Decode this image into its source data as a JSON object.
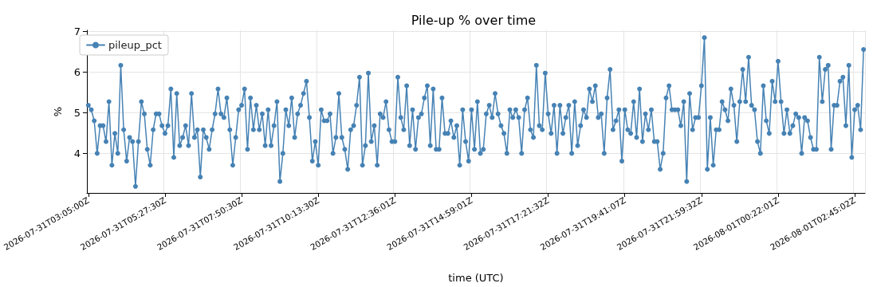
{
  "chart_data": {
    "type": "line",
    "title": "Pile-up % over time",
    "xlabel": "time (UTC)",
    "ylabel": "%",
    "categories": [
      "2026-07-31T03:05:00Z",
      null,
      null,
      null,
      null,
      null,
      null,
      null,
      null,
      null,
      null,
      null,
      null,
      null,
      null,
      null,
      null,
      null,
      null,
      null,
      null,
      null,
      null,
      null,
      null,
      null,
      "2026-07-31T05:27:30Z",
      null,
      null,
      null,
      null,
      null,
      null,
      null,
      null,
      null,
      null,
      null,
      null,
      null,
      null,
      null,
      null,
      null,
      null,
      null,
      null,
      null,
      null,
      null,
      null,
      null,
      "2026-07-31T07:50:30Z",
      null,
      null,
      null,
      null,
      null,
      null,
      null,
      null,
      null,
      null,
      null,
      null,
      null,
      null,
      null,
      null,
      null,
      null,
      null,
      null,
      null,
      null,
      null,
      null,
      null,
      "2026-07-31T10:13:30Z",
      null,
      null,
      null,
      null,
      null,
      null,
      null,
      null,
      null,
      null,
      null,
      null,
      null,
      null,
      null,
      null,
      null,
      null,
      null,
      null,
      null,
      null,
      null,
      null,
      null,
      "2026-07-31T12:36:01Z",
      null,
      null,
      null,
      null,
      null,
      null,
      null,
      null,
      null,
      null,
      null,
      null,
      null,
      null,
      null,
      null,
      null,
      null,
      null,
      null,
      null,
      null,
      null,
      null,
      null,
      "2026-07-31T14:59:01Z",
      null,
      null,
      null,
      null,
      null,
      null,
      null,
      null,
      null,
      null,
      null,
      null,
      null,
      null,
      null,
      null,
      null,
      null,
      null,
      null,
      null,
      null,
      null,
      null,
      null,
      "2026-07-31T17:21:32Z",
      null,
      null,
      null,
      null,
      null,
      null,
      null,
      null,
      null,
      null,
      null,
      null,
      null,
      null,
      null,
      null,
      null,
      null,
      null,
      null,
      null,
      null,
      null,
      null,
      null,
      "2026-07-31T19:41:07Z",
      null,
      null,
      null,
      null,
      null,
      null,
      null,
      null,
      null,
      null,
      null,
      null,
      null,
      null,
      null,
      null,
      null,
      null,
      null,
      null,
      null,
      null,
      null,
      null,
      null,
      "2026-07-31T21:59:32Z",
      null,
      null,
      null,
      null,
      null,
      null,
      null,
      null,
      null,
      null,
      null,
      null,
      null,
      null,
      null,
      null,
      null,
      null,
      null,
      null,
      null,
      null,
      null,
      null,
      null,
      "2026-08-01T00:22:01Z",
      null,
      null,
      null,
      null,
      null,
      null,
      null,
      null,
      null,
      null,
      null,
      null,
      null,
      null,
      null,
      null,
      null,
      null,
      null,
      null,
      null,
      null,
      null,
      null,
      null,
      "2026-08-01T02:45:02Z",
      null,
      null,
      null
    ],
    "series": [
      {
        "name": "pileup_pct",
        "color": "#4682b4",
        "values": [
          5.18,
          5.07,
          4.8,
          4.0,
          4.68,
          4.68,
          4.29,
          5.27,
          3.71,
          4.49,
          4.0,
          6.16,
          4.58,
          3.81,
          4.39,
          4.29,
          3.19,
          4.29,
          5.27,
          4.97,
          4.1,
          3.71,
          4.58,
          4.97,
          4.97,
          4.68,
          4.49,
          4.68,
          5.58,
          3.9,
          5.47,
          4.19,
          4.39,
          4.68,
          4.19,
          5.47,
          4.39,
          4.58,
          3.42,
          4.58,
          4.39,
          4.1,
          4.58,
          4.97,
          5.58,
          4.97,
          4.88,
          5.36,
          4.58,
          3.71,
          4.39,
          5.07,
          5.18,
          5.58,
          4.1,
          5.36,
          4.58,
          5.18,
          4.58,
          4.97,
          4.19,
          5.07,
          4.19,
          4.68,
          5.27,
          3.31,
          4.0,
          5.07,
          4.68,
          5.36,
          4.39,
          4.97,
          5.18,
          5.47,
          5.77,
          4.88,
          3.81,
          4.29,
          3.71,
          5.07,
          4.8,
          4.8,
          4.97,
          4.0,
          4.39,
          5.47,
          4.39,
          4.1,
          3.61,
          4.58,
          4.68,
          5.18,
          5.87,
          3.71,
          4.19,
          5.97,
          4.29,
          4.68,
          3.71,
          4.97,
          4.88,
          5.27,
          4.58,
          4.29,
          4.29,
          5.87,
          4.88,
          4.58,
          5.66,
          4.19,
          5.07,
          4.1,
          4.88,
          4.97,
          5.36,
          5.66,
          4.19,
          5.58,
          4.1,
          4.1,
          5.36,
          4.49,
          4.49,
          4.8,
          4.39,
          4.68,
          3.71,
          5.07,
          4.29,
          3.81,
          5.07,
          4.1,
          5.27,
          4.0,
          4.1,
          4.97,
          5.18,
          4.88,
          5.47,
          4.97,
          4.68,
          4.49,
          4.0,
          5.07,
          4.88,
          5.07,
          4.88,
          4.0,
          5.07,
          5.36,
          4.58,
          4.39,
          6.16,
          4.68,
          4.58,
          5.97,
          4.97,
          4.49,
          5.18,
          4.0,
          5.18,
          4.49,
          4.88,
          5.18,
          4.0,
          5.27,
          4.19,
          4.68,
          5.07,
          4.88,
          5.58,
          5.27,
          5.66,
          4.88,
          4.97,
          4.0,
          5.36,
          6.06,
          4.58,
          4.8,
          5.07,
          3.81,
          5.07,
          4.58,
          4.49,
          5.27,
          4.39,
          5.58,
          4.29,
          4.97,
          4.58,
          5.07,
          4.29,
          4.29,
          3.61,
          4.0,
          5.36,
          5.66,
          5.07,
          5.07,
          5.07,
          4.68,
          5.27,
          3.31,
          5.47,
          4.58,
          4.88,
          4.88,
          5.66,
          6.84,
          3.61,
          4.88,
          3.71,
          4.58,
          4.58,
          5.27,
          5.07,
          4.8,
          5.58,
          5.18,
          4.29,
          5.27,
          6.06,
          5.27,
          6.36,
          5.18,
          5.07,
          4.29,
          4.0,
          5.66,
          4.8,
          4.49,
          5.77,
          5.27,
          6.26,
          5.27,
          4.49,
          5.07,
          4.49,
          4.68,
          4.97,
          4.88,
          4.0,
          4.88,
          4.8,
          4.39,
          4.1,
          4.1,
          6.36,
          5.27,
          6.06,
          6.16,
          4.1,
          5.18,
          5.18,
          5.77,
          5.87,
          4.68,
          6.16,
          3.9,
          5.07,
          5.18,
          4.58,
          6.55
        ]
      }
    ],
    "ylim": [
      3.03,
      7.02
    ],
    "yticks": [
      4,
      5,
      6,
      7
    ],
    "grid": true,
    "legend": "top left",
    "marker": "circle",
    "line_style": "solid"
  }
}
